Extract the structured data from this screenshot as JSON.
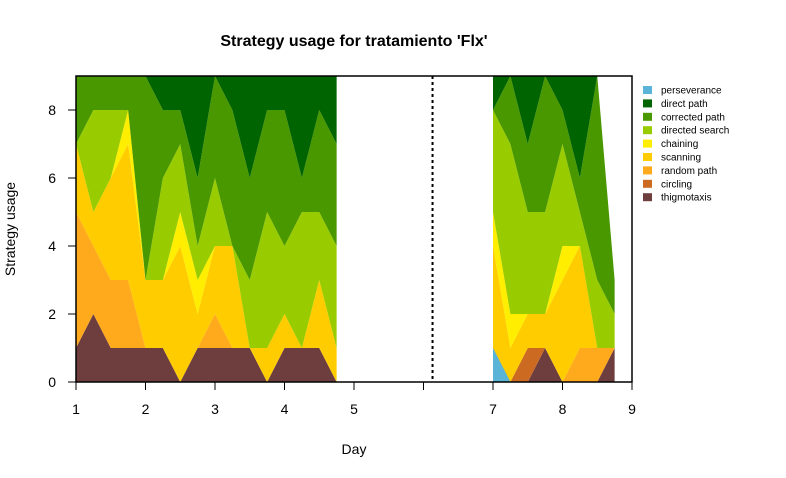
{
  "chart_data": {
    "type": "area",
    "stacked": true,
    "title": "Strategy usage for tratamiento 'Flx'",
    "xlabel": "Day",
    "ylabel": "Strategy usage",
    "ylim": [
      0,
      9
    ],
    "xlim": [
      1,
      9
    ],
    "grid": false,
    "legend_position": "right",
    "x_tick_labels": [
      {
        "value": 1,
        "label": "1"
      },
      {
        "value": 2,
        "label": "2"
      },
      {
        "value": 3,
        "label": "3"
      },
      {
        "value": 4,
        "label": "4"
      },
      {
        "value": 5,
        "label": "5"
      },
      {
        "value": 7,
        "label": "7"
      },
      {
        "value": 8,
        "label": "8"
      },
      {
        "value": 9,
        "label": "9"
      }
    ],
    "x_minor_ticks": [
      6
    ],
    "y_ticks": [
      0,
      2,
      4,
      6,
      8
    ],
    "divider_x": 6.13,
    "series_order": [
      "thigmotaxis",
      "circling",
      "random path",
      "scanning",
      "chaining",
      "directed search",
      "corrected path",
      "direct path",
      "perseverance"
    ],
    "legend_order": [
      "perseverance",
      "direct path",
      "corrected path",
      "directed search",
      "chaining",
      "scanning",
      "random path",
      "circling",
      "thigmotaxis"
    ],
    "colors": {
      "perseverance": "#5ab4d8",
      "direct path": "#006400",
      "corrected path": "#4a9800",
      "directed search": "#99cc00",
      "chaining": "#ffee00",
      "scanning": "#ffcc00",
      "random path": "#ffaa1c",
      "circling": "#cd6a22",
      "thigmotaxis": "#6e3e3e"
    },
    "blocks": [
      {
        "x": [
          1,
          1.25,
          1.5,
          1.75,
          2,
          2.25,
          2.5,
          2.75,
          3,
          3.25,
          3.5,
          3.75,
          4,
          4.25,
          4.5,
          4.75
        ],
        "cumulative": {
          "thigmotaxis": [
            1,
            2,
            1,
            1,
            1,
            1,
            0,
            1,
            1,
            1,
            1,
            0,
            1,
            1,
            1,
            0
          ],
          "circling": [
            1,
            2,
            1,
            1,
            1,
            1,
            0,
            1,
            1,
            1,
            1,
            0,
            1,
            1,
            1,
            0
          ],
          "random path": [
            5,
            4,
            3,
            3,
            1,
            1,
            0,
            1,
            2,
            1,
            1,
            0,
            1,
            1,
            1,
            0
          ],
          "scanning": [
            7,
            5,
            6,
            7,
            3,
            3,
            4,
            2,
            4,
            4,
            1,
            1,
            2,
            1,
            3,
            1
          ],
          "chaining": [
            7,
            5,
            6,
            8,
            3,
            3,
            5,
            3,
            4,
            4,
            1,
            1,
            2,
            1,
            3,
            1
          ],
          "directed search": [
            7,
            8,
            8,
            8,
            3,
            6,
            7,
            4,
            6,
            4,
            3,
            5,
            4,
            5,
            5,
            4
          ],
          "corrected path": [
            9,
            9,
            9,
            9,
            9,
            8,
            8,
            6,
            9,
            8,
            6,
            8,
            8,
            6,
            8,
            7
          ],
          "direct path": [
            9,
            9,
            9,
            9,
            9,
            9,
            9,
            9,
            9,
            9,
            9,
            9,
            9,
            9,
            9,
            9
          ],
          "perseverance": [
            9,
            9,
            9,
            9,
            9,
            9,
            9,
            9,
            9,
            9,
            9,
            9,
            9,
            9,
            9,
            9
          ]
        }
      },
      {
        "x": [
          7,
          7.25,
          7.5,
          7.75,
          8,
          8.25,
          8.5,
          8.75
        ],
        "cumulative": {
          "perseverance_base": [
            1,
            0,
            0,
            0,
            0,
            0,
            0,
            0
          ],
          "thigmotaxis": [
            1,
            0,
            0,
            1,
            0,
            0,
            0,
            1
          ],
          "circling": [
            1,
            0,
            1,
            1,
            0,
            0,
            0,
            1
          ],
          "random path": [
            1,
            0,
            1,
            1,
            0,
            1,
            1,
            1
          ],
          "scanning": [
            4,
            1,
            2,
            2,
            3,
            4,
            1,
            1
          ],
          "chaining": [
            5,
            2,
            2,
            2,
            4,
            4,
            1,
            1
          ],
          "directed search": [
            8,
            7,
            5,
            5,
            7,
            5,
            3,
            2
          ],
          "corrected path": [
            8,
            9,
            7,
            9,
            8,
            6,
            9,
            3
          ],
          "direct path": [
            9,
            9,
            9,
            9,
            9,
            9,
            9,
            3
          ],
          "perseverance": [
            9,
            9,
            9,
            9,
            9,
            9,
            9,
            3
          ]
        }
      }
    ]
  }
}
